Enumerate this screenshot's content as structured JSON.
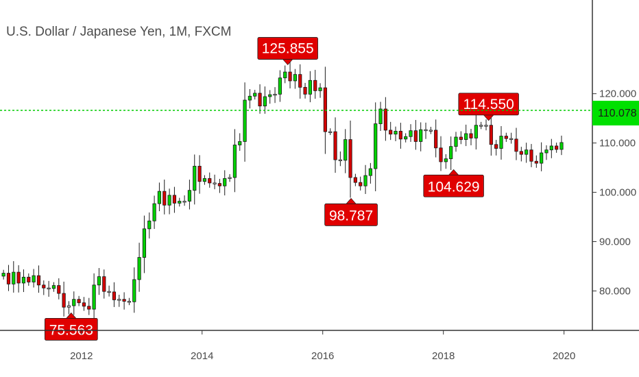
{
  "header": {
    "title": "U.S. Dollar / Japanese Yen, 1M, FXCM"
  },
  "colors": {
    "up": "#00d100",
    "down": "#d30000",
    "neutral": "#d9d9d9",
    "wick": "#1a1a1a",
    "label_bg": "#e00000",
    "last_price_line": "#00cc00",
    "last_price_badge": "#00e000",
    "axis": "#333333"
  },
  "chart_data": {
    "type": "candlestick",
    "title": "U.S. Dollar / Japanese Yen, 1M, FXCM",
    "timeframe": "1M",
    "xlabel": "",
    "ylabel": "",
    "ylim": [
      72,
      139
    ],
    "xlim": [
      2010.65,
      2020.47
    ],
    "y_ticks": [
      80,
      90,
      100,
      110,
      120
    ],
    "y_tick_labels": [
      "80.000",
      "90.000",
      "100.000",
      "110.000",
      "120.000"
    ],
    "x_ticks": [
      2012,
      2014,
      2016,
      2018,
      2020
    ],
    "x_tick_labels": [
      "2012",
      "2014",
      "2016",
      "2018",
      "2020"
    ],
    "last_price": 110.078,
    "last_price_label": "110.078",
    "grid": false,
    "annotations": [
      {
        "label": "75.563",
        "value": 75.563,
        "t": 2011.83,
        "position": "below"
      },
      {
        "label": "125.855",
        "value": 125.855,
        "t": 2015.42,
        "position": "above"
      },
      {
        "label": "98.787",
        "value": 98.787,
        "t": 2016.47,
        "position": "below"
      },
      {
        "label": "114.550",
        "value": 114.55,
        "t": 2018.75,
        "position": "above"
      },
      {
        "label": "104.629",
        "value": 104.629,
        "t": 2018.17,
        "position": "below"
      }
    ],
    "start": "2010-09",
    "close": [
      83.6,
      81.4,
      83.8,
      81.6,
      82.8,
      81.8,
      83.1,
      81.2,
      80.6,
      80.5,
      81.1,
      79.5,
      76.7,
      77.0,
      78.3,
      77.6,
      76.9,
      76.3,
      81.2,
      82.9,
      79.9,
      79.8,
      78.2,
      78.3,
      77.9,
      77.8,
      82.3,
      86.8,
      92.6,
      94.2,
      97.7,
      100.2,
      97.4,
      99.4,
      97.8,
      98.2,
      98.2,
      100.4,
      105.3,
      102.2,
      102.8,
      101.9,
      101.8,
      101.3,
      102.8,
      103.0,
      109.6,
      110.3,
      118.7,
      119.5,
      120.1,
      117.5,
      119.4,
      119.8,
      119.9,
      123.2,
      124.4,
      122.6,
      123.9,
      121.3,
      119.9,
      122.7,
      120.6,
      121.2,
      112.3,
      112.3,
      106.6,
      106.5,
      110.7,
      103.0,
      102.0,
      101.3,
      103.4,
      104.8,
      113.9,
      116.9,
      112.6,
      111.8,
      112.4,
      110.8,
      111.3,
      112.5,
      110.3,
      112.7,
      112.5,
      112.6,
      109.0,
      106.2,
      106.8,
      109.3,
      111.2,
      110.7,
      111.9,
      111.0,
      113.6,
      113.5,
      113.6,
      109.7,
      108.9,
      111.4,
      110.9,
      110.8,
      108.3,
      107.7,
      108.6,
      106.3,
      105.9,
      108.0,
      108.6,
      109.4,
      108.7,
      110.1
    ]
  }
}
